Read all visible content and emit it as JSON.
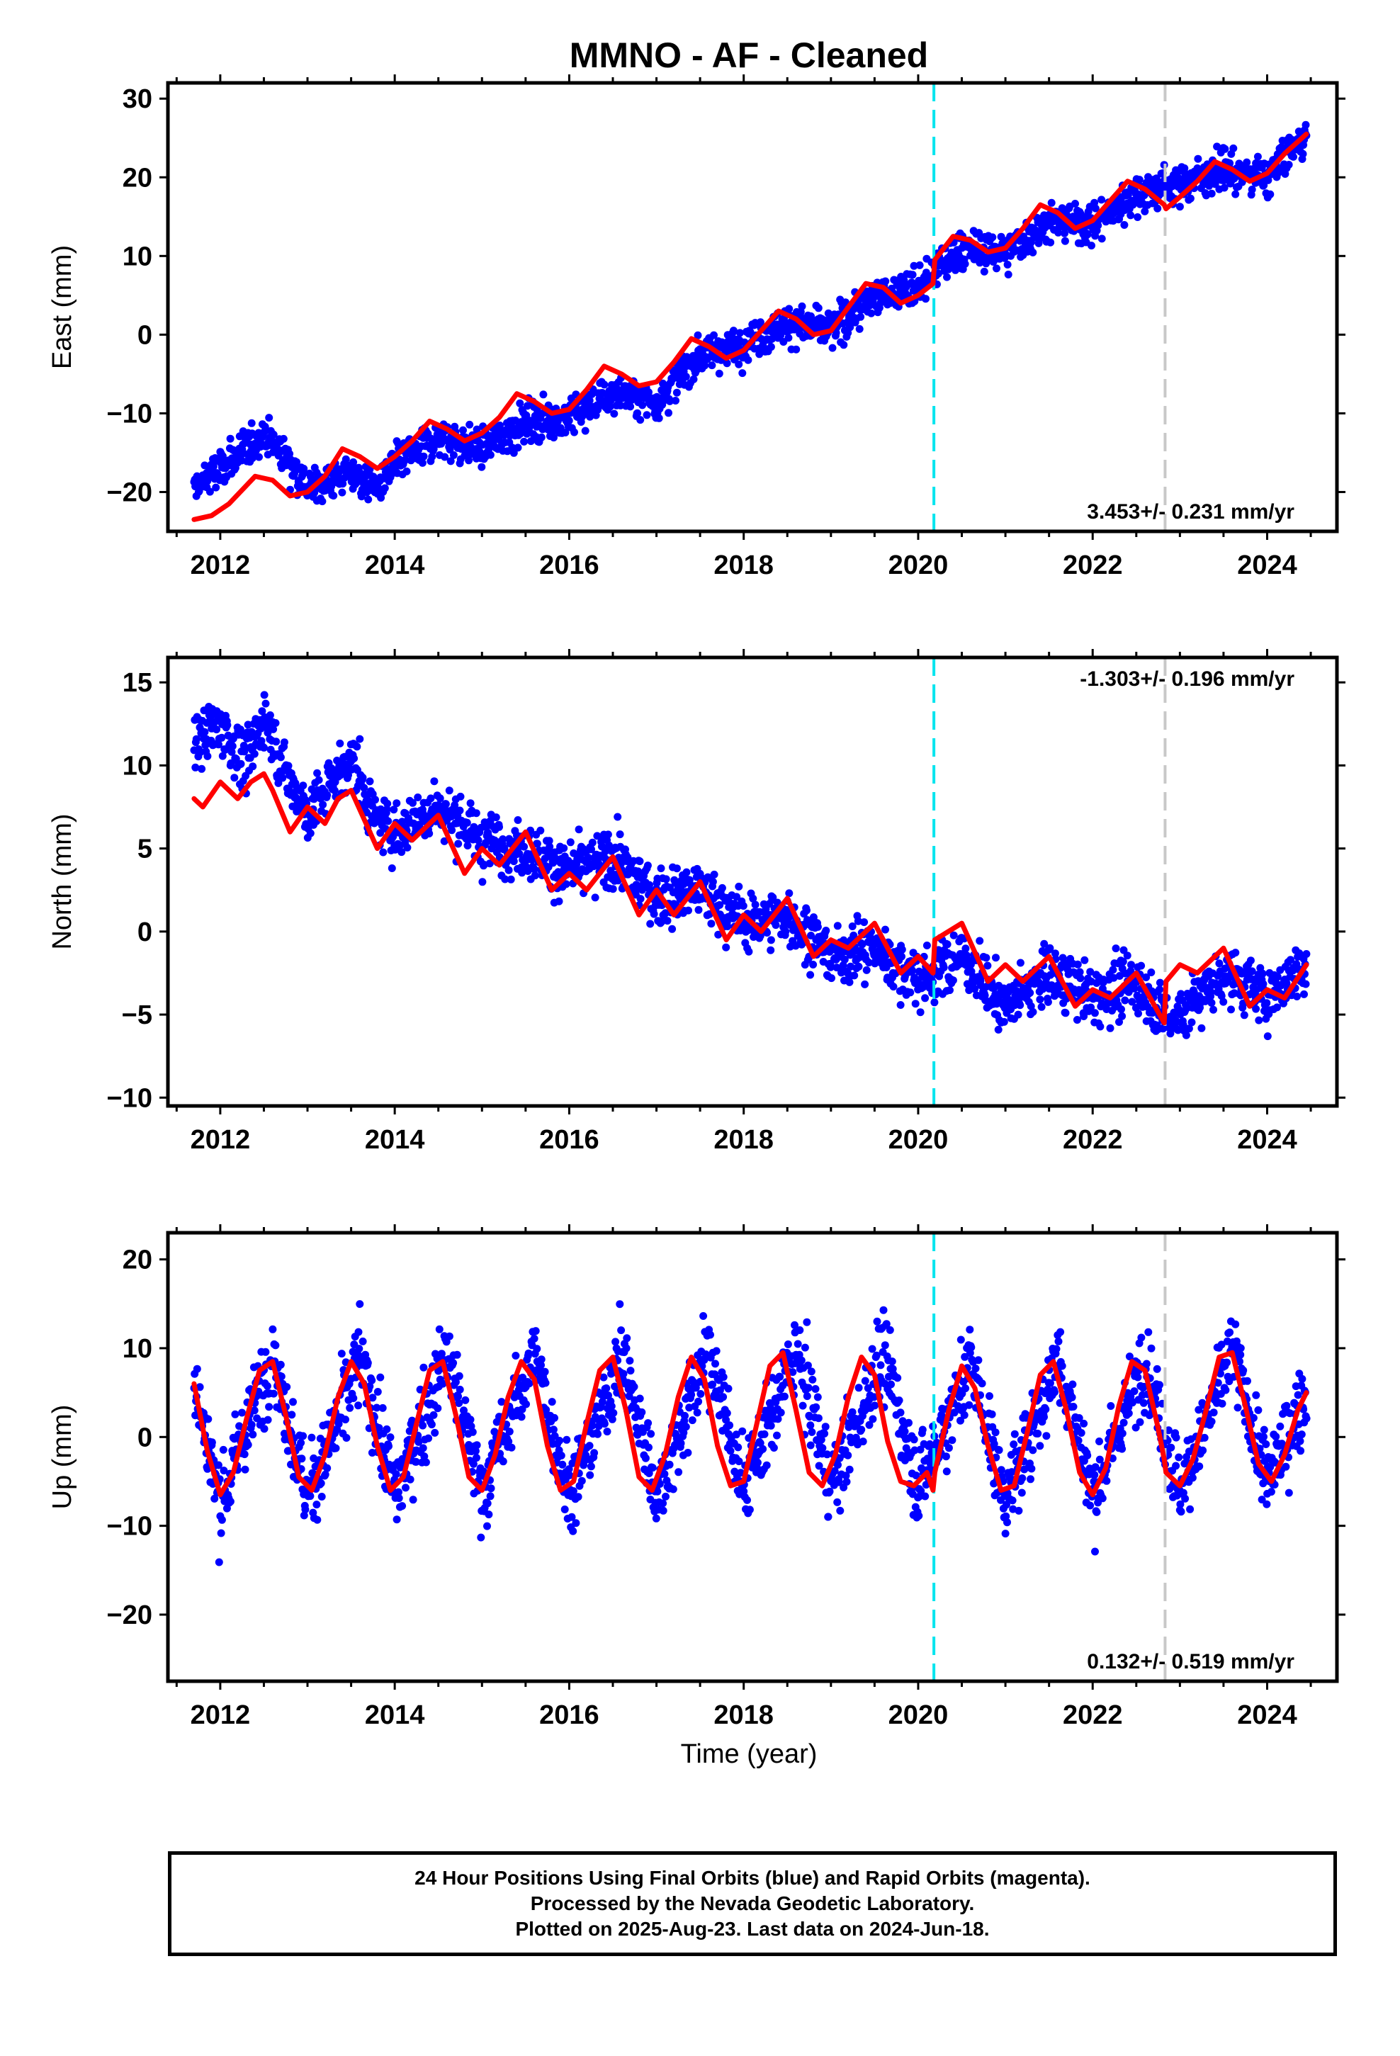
{
  "figure": {
    "title": "MMNO  - AF - Cleaned",
    "xlabel": "Time (year)"
  },
  "footer": {
    "line1": "24 Hour Positions Using Final Orbits (blue) and Rapid Orbits (magenta).",
    "line2": "Processed by the Nevada Geodetic Laboratory.",
    "line3": "Plotted on 2025-Aug-23. Last data on 2024-Jun-18."
  },
  "colors": {
    "points": "#0000ff",
    "fit": "#ff0000",
    "event_line_1": "#00e5ee",
    "event_line_2": "#c8c8c8",
    "axes": "#000000"
  },
  "chart_data": [
    {
      "type": "scatter",
      "panel": "east",
      "ylabel": "East (mm)",
      "xlim": [
        2011.4,
        2024.8
      ],
      "ylim": [
        -25,
        32
      ],
      "xticks": [
        2012,
        2014,
        2016,
        2018,
        2020,
        2022,
        2024
      ],
      "yticks": [
        -20,
        -10,
        0,
        10,
        20,
        30
      ],
      "rate_label": "3.453+/- 0.231 mm/yr",
      "rate_position": "bottom-right",
      "event_lines": [
        2020.18,
        2022.83
      ],
      "series": [
        {
          "role": "daily positions",
          "x": [
            2011.7,
            2012.0,
            2012.3,
            2012.5,
            2012.8,
            2013.0,
            2013.5,
            2013.8,
            2014.0,
            2014.5,
            2015.0,
            2015.5,
            2016.0,
            2016.5,
            2017.0,
            2017.5,
            2018.0,
            2018.5,
            2019.0,
            2019.5,
            2020.0,
            2020.5,
            2021.0,
            2021.5,
            2022.0,
            2022.5,
            2022.9,
            2023.5,
            2024.0,
            2024.45
          ],
          "y": [
            -19.5,
            -17.0,
            -14.5,
            -12.5,
            -16.0,
            -19.5,
            -17.5,
            -19.5,
            -16.5,
            -13.0,
            -14.5,
            -11.0,
            -10.5,
            -7.5,
            -8.5,
            -2.5,
            -1.0,
            1.5,
            0.5,
            5.0,
            6.0,
            11.0,
            10.5,
            14.5,
            14.0,
            18.0,
            19.0,
            21.0,
            20.0,
            25.5
          ]
        },
        {
          "role": "model fit",
          "x": [
            2011.7,
            2011.9,
            2012.1,
            2012.4,
            2012.6,
            2012.8,
            2013.0,
            2013.2,
            2013.4,
            2013.6,
            2013.8,
            2014.0,
            2014.2,
            2014.4,
            2014.6,
            2014.8,
            2015.0,
            2015.2,
            2015.4,
            2015.6,
            2015.8,
            2016.0,
            2016.2,
            2016.4,
            2016.6,
            2016.8,
            2017.0,
            2017.2,
            2017.4,
            2017.6,
            2017.8,
            2018.0,
            2018.2,
            2018.4,
            2018.6,
            2018.8,
            2019.0,
            2019.2,
            2019.4,
            2019.6,
            2019.8,
            2020.0,
            2020.17,
            2020.19,
            2020.4,
            2020.6,
            2020.8,
            2021.0,
            2021.2,
            2021.4,
            2021.6,
            2021.8,
            2022.0,
            2022.2,
            2022.4,
            2022.6,
            2022.82,
            2022.84,
            2023.0,
            2023.2,
            2023.4,
            2023.6,
            2023.8,
            2024.0,
            2024.2,
            2024.45
          ],
          "y": [
            -23.5,
            -23.0,
            -21.5,
            -18.0,
            -18.5,
            -20.5,
            -20.0,
            -18.0,
            -14.5,
            -15.5,
            -17.0,
            -15.5,
            -13.5,
            -11.0,
            -12.0,
            -13.5,
            -12.5,
            -10.5,
            -7.5,
            -8.5,
            -10.0,
            -9.5,
            -7.0,
            -4.0,
            -5.0,
            -6.5,
            -6.0,
            -3.5,
            -0.5,
            -1.5,
            -3.0,
            -2.0,
            0.5,
            3.0,
            2.0,
            0.0,
            0.5,
            3.5,
            6.5,
            6.0,
            4.0,
            5.0,
            6.5,
            9.5,
            12.5,
            12.0,
            10.5,
            11.0,
            13.5,
            16.5,
            15.5,
            13.5,
            14.5,
            17.0,
            19.5,
            18.5,
            16.5,
            16.0,
            17.5,
            19.5,
            22.0,
            21.0,
            19.5,
            20.5,
            23.0,
            25.5
          ]
        }
      ]
    },
    {
      "type": "scatter",
      "panel": "north",
      "ylabel": "North (mm)",
      "xlim": [
        2011.4,
        2024.8
      ],
      "ylim": [
        -10.5,
        16.5
      ],
      "xticks": [
        2012,
        2014,
        2016,
        2018,
        2020,
        2022,
        2024
      ],
      "yticks": [
        -10,
        -5,
        0,
        5,
        10,
        15
      ],
      "rate_label": "-1.303+/- 0.196 mm/yr",
      "rate_position": "top-right",
      "event_lines": [
        2020.18,
        2022.83
      ],
      "series": [
        {
          "role": "daily positions",
          "x": [
            2011.7,
            2012.0,
            2012.3,
            2012.5,
            2012.8,
            2013.0,
            2013.5,
            2013.8,
            2014.0,
            2014.5,
            2015.0,
            2015.5,
            2016.0,
            2016.5,
            2017.0,
            2017.5,
            2018.0,
            2018.5,
            2019.0,
            2019.5,
            2020.0,
            2020.5,
            2021.0,
            2021.5,
            2022.0,
            2022.5,
            2022.9,
            2023.5,
            2024.0,
            2024.45
          ],
          "y": [
            11.5,
            12.5,
            10.0,
            13.0,
            9.0,
            7.0,
            10.5,
            6.5,
            6.0,
            7.5,
            5.5,
            5.0,
            3.5,
            4.5,
            2.0,
            2.5,
            0.5,
            1.0,
            -1.5,
            -1.0,
            -3.0,
            -1.5,
            -4.5,
            -2.5,
            -4.0,
            -3.0,
            -5.5,
            -2.5,
            -4.0,
            -2.0
          ]
        },
        {
          "role": "model fit",
          "x": [
            2011.7,
            2011.8,
            2012.0,
            2012.2,
            2012.35,
            2012.5,
            2012.6,
            2012.8,
            2013.0,
            2013.2,
            2013.35,
            2013.5,
            2013.8,
            2014.0,
            2014.2,
            2014.5,
            2014.8,
            2015.0,
            2015.2,
            2015.5,
            2015.8,
            2016.0,
            2016.2,
            2016.5,
            2016.8,
            2017.0,
            2017.2,
            2017.5,
            2017.8,
            2018.0,
            2018.2,
            2018.5,
            2018.8,
            2019.0,
            2019.2,
            2019.5,
            2019.8,
            2020.0,
            2020.17,
            2020.19,
            2020.5,
            2020.8,
            2021.0,
            2021.2,
            2021.5,
            2021.8,
            2022.0,
            2022.2,
            2022.5,
            2022.82,
            2022.84,
            2023.0,
            2023.2,
            2023.5,
            2023.8,
            2024.0,
            2024.2,
            2024.45
          ],
          "y": [
            8.0,
            7.5,
            9.0,
            8.0,
            9.0,
            9.5,
            8.5,
            6.0,
            7.5,
            6.5,
            8.0,
            8.5,
            5.0,
            6.5,
            5.5,
            7.0,
            3.5,
            5.0,
            4.0,
            6.0,
            2.5,
            3.5,
            2.5,
            4.5,
            1.0,
            2.5,
            1.0,
            3.0,
            -0.5,
            1.0,
            0.0,
            2.0,
            -1.5,
            -0.5,
            -1.0,
            0.5,
            -2.5,
            -1.5,
            -2.5,
            -0.5,
            0.5,
            -3.0,
            -2.0,
            -3.0,
            -1.5,
            -4.5,
            -3.5,
            -4.0,
            -2.5,
            -5.5,
            -3.0,
            -2.0,
            -2.5,
            -1.0,
            -4.5,
            -3.5,
            -4.0,
            -2.0
          ]
        }
      ]
    },
    {
      "type": "scatter",
      "panel": "up",
      "ylabel": "Up (mm)",
      "xlabel": "Time (year)",
      "xlim": [
        2011.4,
        2024.8
      ],
      "ylim": [
        -27.5,
        23
      ],
      "xticks": [
        2012,
        2014,
        2016,
        2018,
        2020,
        2022,
        2024
      ],
      "yticks": [
        -20,
        -10,
        0,
        10,
        20
      ],
      "rate_label": "0.132+/- 0.519 mm/yr",
      "rate_position": "bottom-right",
      "event_lines": [
        2020.18,
        2022.83
      ],
      "series": [
        {
          "role": "daily positions",
          "x": [
            2011.7,
            2012.0,
            2012.3,
            2012.6,
            2013.0,
            2013.3,
            2013.6,
            2014.0,
            2014.3,
            2014.6,
            2015.0,
            2015.3,
            2015.6,
            2016.0,
            2016.3,
            2016.6,
            2017.0,
            2017.3,
            2017.6,
            2018.0,
            2018.3,
            2018.6,
            2019.0,
            2019.3,
            2019.6,
            2020.0,
            2020.3,
            2020.6,
            2021.0,
            2021.3,
            2021.6,
            2022.0,
            2022.3,
            2022.6,
            2023.0,
            2023.3,
            2023.6,
            2024.0,
            2024.45
          ],
          "y": [
            6.0,
            -7.5,
            1.0,
            9.5,
            -7.0,
            0.5,
            9.0,
            -6.5,
            1.0,
            9.5,
            -6.5,
            1.5,
            9.5,
            -6.5,
            1.0,
            9.5,
            -6.5,
            1.5,
            10.0,
            -6.0,
            1.5,
            10.0,
            -5.5,
            1.5,
            9.5,
            -5.5,
            1.0,
            8.5,
            -7.0,
            0.5,
            9.0,
            -6.5,
            1.0,
            9.0,
            -6.0,
            1.5,
            10.0,
            -5.0,
            5.0
          ]
        },
        {
          "role": "model fit",
          "x": [
            2011.7,
            2011.85,
            2012.0,
            2012.15,
            2012.3,
            2012.45,
            2012.6,
            2012.75,
            2012.9,
            2013.05,
            2013.2,
            2013.35,
            2013.5,
            2013.65,
            2013.8,
            2013.95,
            2014.1,
            2014.25,
            2014.4,
            2014.55,
            2014.7,
            2014.85,
            2015.0,
            2015.15,
            2015.3,
            2015.45,
            2015.6,
            2015.75,
            2015.9,
            2016.05,
            2016.2,
            2016.35,
            2016.5,
            2016.65,
            2016.8,
            2016.95,
            2017.1,
            2017.25,
            2017.4,
            2017.55,
            2017.7,
            2017.85,
            2018.0,
            2018.15,
            2018.3,
            2018.45,
            2018.6,
            2018.75,
            2018.9,
            2019.05,
            2019.2,
            2019.35,
            2019.5,
            2019.65,
            2019.8,
            2019.95,
            2020.1,
            2020.17,
            2020.19,
            2020.35,
            2020.5,
            2020.65,
            2020.8,
            2020.95,
            2021.1,
            2021.25,
            2021.4,
            2021.55,
            2021.7,
            2021.85,
            2022.0,
            2022.15,
            2022.3,
            2022.45,
            2022.6,
            2022.75,
            2022.82,
            2022.84,
            2023.0,
            2023.15,
            2023.3,
            2023.45,
            2023.6,
            2023.75,
            2023.9,
            2024.05,
            2024.2,
            2024.35,
            2024.45
          ],
          "y": [
            6.0,
            -1.5,
            -6.5,
            -4.0,
            2.0,
            7.5,
            8.5,
            2.5,
            -4.5,
            -6.0,
            -2.0,
            4.5,
            8.5,
            6.0,
            -1.0,
            -6.0,
            -4.5,
            1.5,
            7.5,
            8.5,
            2.5,
            -4.5,
            -6.0,
            -2.0,
            4.5,
            8.5,
            6.5,
            -1.0,
            -6.0,
            -5.0,
            1.5,
            7.5,
            9.0,
            3.0,
            -4.5,
            -6.0,
            -2.0,
            4.5,
            9.0,
            6.5,
            -1.0,
            -5.5,
            -5.0,
            1.5,
            8.0,
            9.5,
            3.0,
            -4.0,
            -5.5,
            -2.0,
            4.5,
            9.0,
            7.0,
            -0.5,
            -5.0,
            -5.5,
            -4.0,
            -6.0,
            -4.0,
            3.0,
            8.0,
            5.5,
            -1.0,
            -6.0,
            -5.5,
            0.5,
            7.0,
            8.5,
            3.0,
            -4.0,
            -6.5,
            -3.5,
            3.5,
            8.5,
            7.5,
            1.0,
            -2.5,
            -4.0,
            -5.5,
            -2.5,
            3.0,
            9.0,
            9.5,
            3.5,
            -3.0,
            -5.0,
            -2.0,
            3.0,
            5.0
          ]
        }
      ]
    }
  ]
}
